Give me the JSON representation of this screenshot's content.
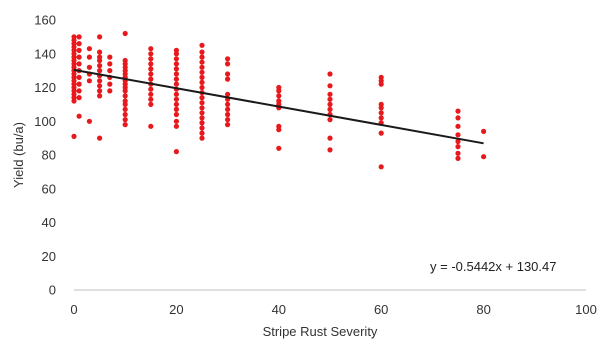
{
  "chart_data": {
    "type": "scatter",
    "xlabel": "Stripe Rust Severity",
    "ylabel": "Yield (bu/a)",
    "xlim": [
      0,
      100
    ],
    "ylim": [
      0,
      160
    ],
    "x_ticks": [
      0,
      20,
      40,
      60,
      80,
      100
    ],
    "y_ticks": [
      0,
      20,
      40,
      60,
      80,
      100,
      120,
      140,
      160
    ],
    "grid": false,
    "legend": "none",
    "point_color": "#e8191c",
    "trendline": {
      "slope": -0.5442,
      "intercept": 130.47,
      "x_range": [
        0,
        80
      ],
      "color": "#1a1a1a"
    },
    "equation_label": "y = -0.5442x + 130.47",
    "points": [
      [
        0,
        150
      ],
      [
        0,
        148
      ],
      [
        0,
        146
      ],
      [
        0,
        144
      ],
      [
        0,
        142
      ],
      [
        0,
        140
      ],
      [
        0,
        138
      ],
      [
        0,
        136
      ],
      [
        0,
        134
      ],
      [
        0,
        132
      ],
      [
        0,
        130
      ],
      [
        0,
        128
      ],
      [
        0,
        126
      ],
      [
        0,
        124
      ],
      [
        0,
        122
      ],
      [
        0,
        120
      ],
      [
        0,
        118
      ],
      [
        0,
        116
      ],
      [
        0,
        114
      ],
      [
        0,
        112
      ],
      [
        0,
        91
      ],
      [
        1,
        150
      ],
      [
        1,
        146
      ],
      [
        1,
        142
      ],
      [
        1,
        138
      ],
      [
        1,
        134
      ],
      [
        1,
        130
      ],
      [
        1,
        126
      ],
      [
        1,
        122
      ],
      [
        1,
        118
      ],
      [
        1,
        114
      ],
      [
        1,
        103
      ],
      [
        3,
        143
      ],
      [
        3,
        138
      ],
      [
        3,
        132
      ],
      [
        3,
        128
      ],
      [
        3,
        124
      ],
      [
        3,
        100
      ],
      [
        5,
        150
      ],
      [
        5,
        141
      ],
      [
        5,
        138
      ],
      [
        5,
        136
      ],
      [
        5,
        133
      ],
      [
        5,
        130
      ],
      [
        5,
        127
      ],
      [
        5,
        124
      ],
      [
        5,
        121
      ],
      [
        5,
        118
      ],
      [
        5,
        115
      ],
      [
        5,
        90
      ],
      [
        7,
        138
      ],
      [
        7,
        134
      ],
      [
        7,
        130
      ],
      [
        7,
        126
      ],
      [
        7,
        122
      ],
      [
        7,
        118
      ],
      [
        10,
        152
      ],
      [
        10,
        136
      ],
      [
        10,
        134
      ],
      [
        10,
        132
      ],
      [
        10,
        130
      ],
      [
        10,
        128
      ],
      [
        10,
        126
      ],
      [
        10,
        124
      ],
      [
        10,
        122
      ],
      [
        10,
        120
      ],
      [
        10,
        118
      ],
      [
        10,
        115
      ],
      [
        10,
        112
      ],
      [
        10,
        110
      ],
      [
        10,
        107
      ],
      [
        10,
        104
      ],
      [
        10,
        101
      ],
      [
        10,
        98
      ],
      [
        15,
        143
      ],
      [
        15,
        140
      ],
      [
        15,
        137
      ],
      [
        15,
        134
      ],
      [
        15,
        131
      ],
      [
        15,
        128
      ],
      [
        15,
        125
      ],
      [
        15,
        122
      ],
      [
        15,
        119
      ],
      [
        15,
        116
      ],
      [
        15,
        113
      ],
      [
        15,
        110
      ],
      [
        15,
        97
      ],
      [
        20,
        142
      ],
      [
        20,
        140
      ],
      [
        20,
        137
      ],
      [
        20,
        134
      ],
      [
        20,
        131
      ],
      [
        20,
        128
      ],
      [
        20,
        125
      ],
      [
        20,
        122
      ],
      [
        20,
        119
      ],
      [
        20,
        116
      ],
      [
        20,
        113
      ],
      [
        20,
        110
      ],
      [
        20,
        107
      ],
      [
        20,
        104
      ],
      [
        20,
        100
      ],
      [
        20,
        97
      ],
      [
        20,
        82
      ],
      [
        25,
        145
      ],
      [
        25,
        141
      ],
      [
        25,
        138
      ],
      [
        25,
        135
      ],
      [
        25,
        132
      ],
      [
        25,
        129
      ],
      [
        25,
        126
      ],
      [
        25,
        123
      ],
      [
        25,
        120
      ],
      [
        25,
        117
      ],
      [
        25,
        114
      ],
      [
        25,
        111
      ],
      [
        25,
        108
      ],
      [
        25,
        105
      ],
      [
        25,
        102
      ],
      [
        25,
        99
      ],
      [
        25,
        96
      ],
      [
        25,
        93
      ],
      [
        25,
        90
      ],
      [
        30,
        137
      ],
      [
        30,
        134
      ],
      [
        30,
        128
      ],
      [
        30,
        125
      ],
      [
        30,
        116
      ],
      [
        30,
        113
      ],
      [
        30,
        110
      ],
      [
        30,
        107
      ],
      [
        30,
        104
      ],
      [
        30,
        101
      ],
      [
        30,
        98
      ],
      [
        40,
        120
      ],
      [
        40,
        118
      ],
      [
        40,
        115
      ],
      [
        40,
        112
      ],
      [
        40,
        110
      ],
      [
        40,
        108
      ],
      [
        40,
        97
      ],
      [
        40,
        95
      ],
      [
        40,
        84
      ],
      [
        50,
        128
      ],
      [
        50,
        121
      ],
      [
        50,
        116
      ],
      [
        50,
        113
      ],
      [
        50,
        110
      ],
      [
        50,
        107
      ],
      [
        50,
        104
      ],
      [
        50,
        101
      ],
      [
        50,
        90
      ],
      [
        50,
        83
      ],
      [
        60,
        126
      ],
      [
        60,
        124
      ],
      [
        60,
        122
      ],
      [
        60,
        110
      ],
      [
        60,
        108
      ],
      [
        60,
        105
      ],
      [
        60,
        102
      ],
      [
        60,
        99
      ],
      [
        60,
        93
      ],
      [
        60,
        73
      ],
      [
        75,
        106
      ],
      [
        75,
        102
      ],
      [
        75,
        97
      ],
      [
        75,
        92
      ],
      [
        75,
        88
      ],
      [
        75,
        85
      ],
      [
        75,
        81
      ],
      [
        75,
        78
      ],
      [
        80,
        94
      ],
      [
        80,
        79
      ]
    ]
  }
}
